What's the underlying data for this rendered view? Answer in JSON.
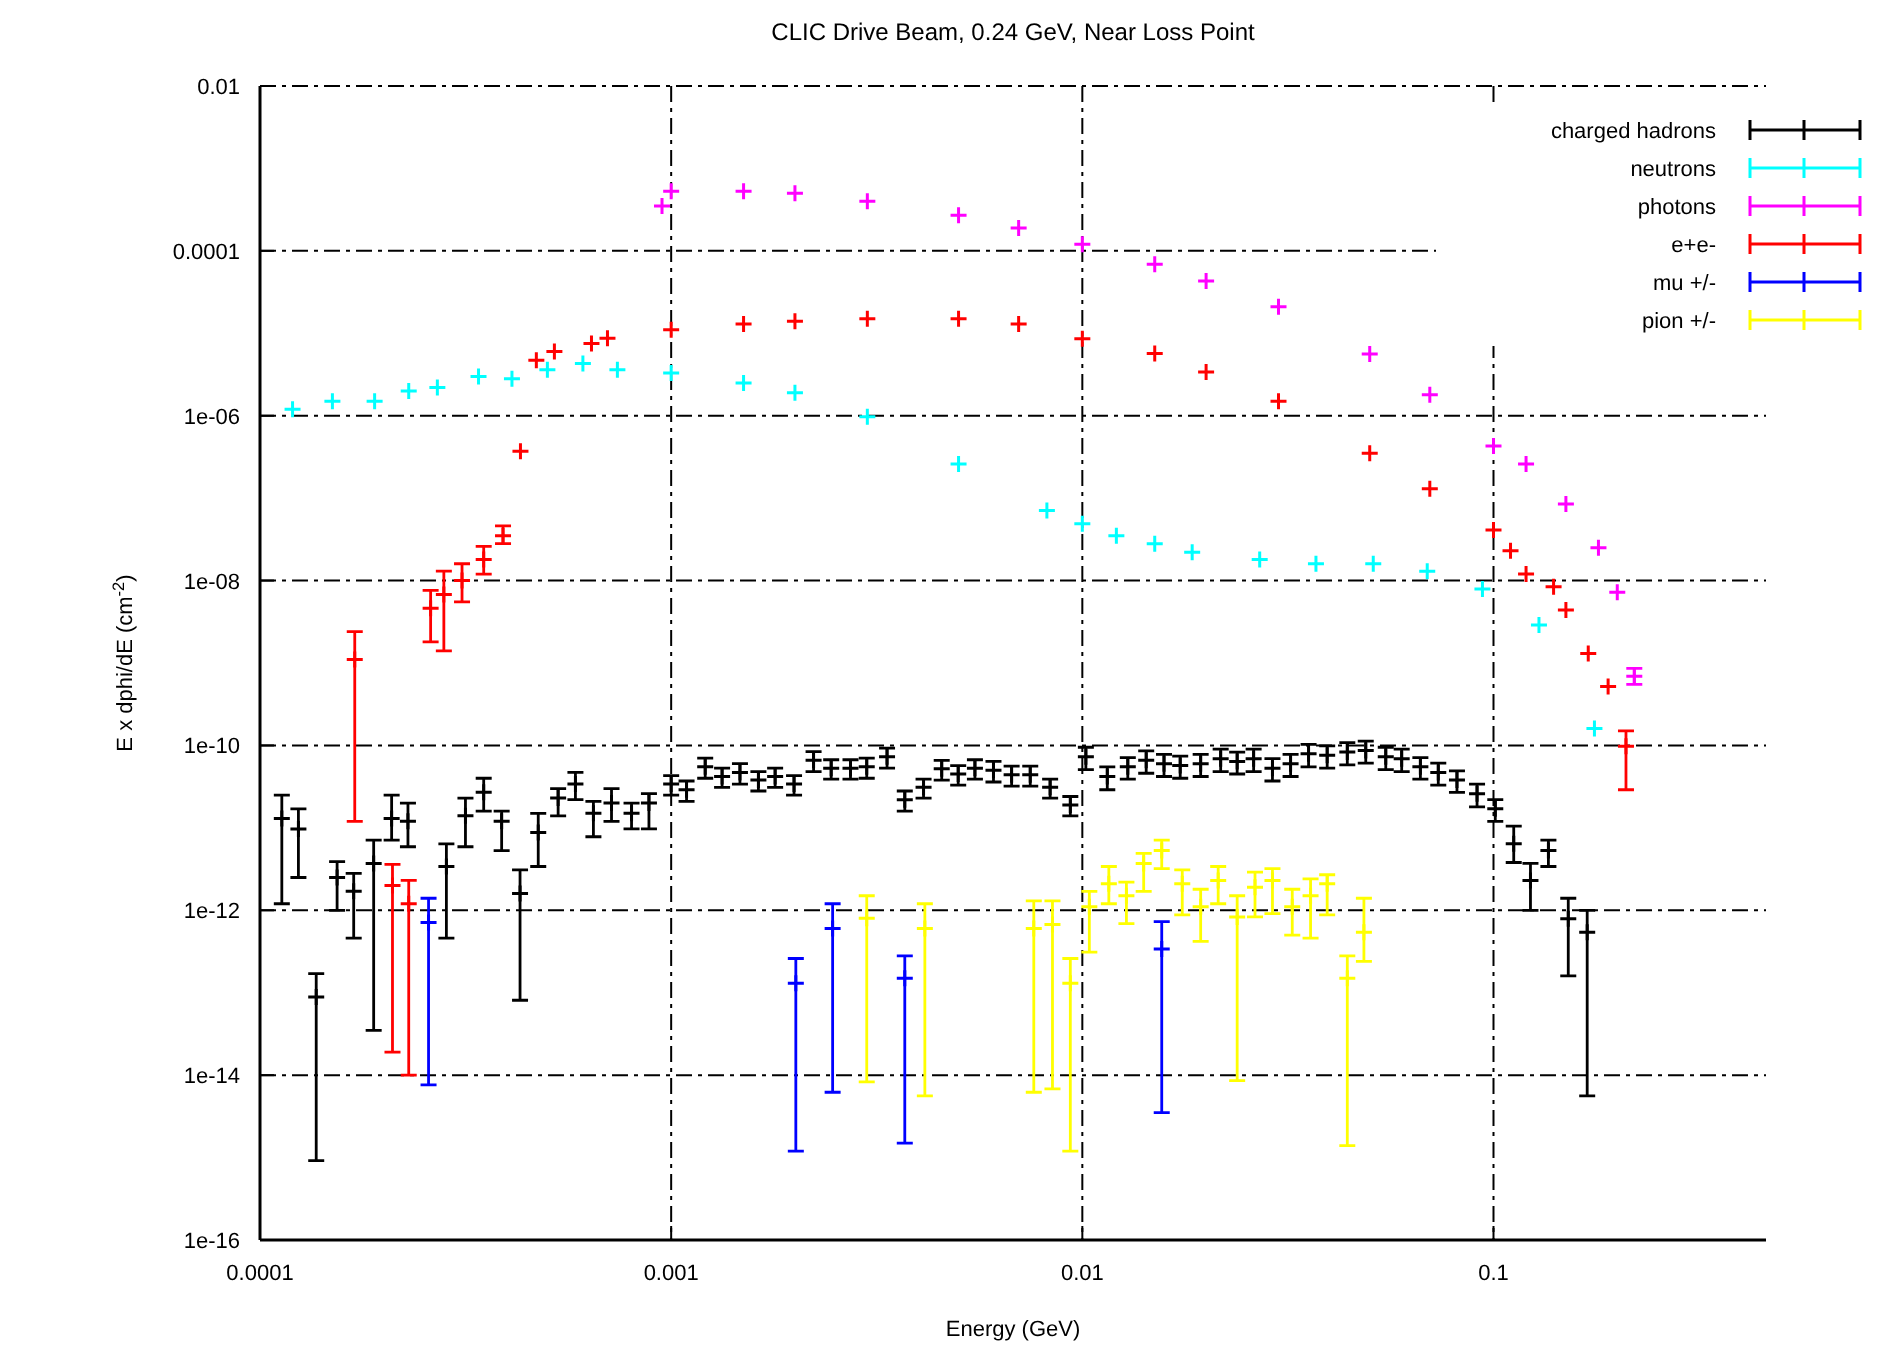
{
  "chart_data": {
    "type": "scatter",
    "title": "CLIC Drive Beam, 0.24 GeV, Near Loss Point",
    "xlabel": "Energy (GeV)",
    "ylabel": "E x dphi/dE (cm$^{-2}$)",
    "log": "xy",
    "grid": true,
    "legend": "top right",
    "marker": "cross",
    "xlim": [
      0.0001,
      0.46
    ],
    "xticks": [
      0.0001,
      0.001,
      0.01,
      0.1
    ],
    "ylim": [
      1e-16,
      0.01
    ],
    "yticks": [
      {
        "value": 1e-16,
        "label": "1e-16"
      },
      {
        "value": 1e-14,
        "label": "1e-14"
      },
      {
        "value": 1e-12,
        "label": "1e-12"
      },
      {
        "value": 1e-10,
        "label": "1e-10"
      },
      {
        "value": 1e-08,
        "label": "1e-08"
      },
      {
        "value": 1e-06,
        "label": "1e-06"
      },
      0.0001,
      0.01
    ],
    "series": [
      {
        "name": "charged hadrons",
        "color": "#000000",
        "x": [
          0.000113,
          0.000124,
          0.000137,
          0.000154,
          0.000169,
          0.000189,
          0.000209,
          0.000229,
          0.000284,
          0.000316,
          0.00035,
          0.000387,
          0.000429,
          0.000475,
          0.000531,
          0.000585,
          0.000647,
          0.000716,
          0.000801,
          0.000883,
          0.001,
          0.00109,
          0.00121,
          0.00133,
          0.00147,
          0.00163,
          0.00179,
          0.00199,
          0.00222,
          0.00245,
          0.00273,
          0.00299,
          0.00335,
          0.0037,
          0.00411,
          0.00455,
          0.00499,
          0.00548,
          0.00608,
          0.00673,
          0.00747,
          0.00835,
          0.00935,
          0.0102,
          0.0115,
          0.0129,
          0.0143,
          0.0158,
          0.0173,
          0.0194,
          0.0217,
          0.0238,
          0.0261,
          0.029,
          0.0321,
          0.0355,
          0.0394,
          0.0441,
          0.0489,
          0.0547,
          0.0598,
          0.0664,
          0.0734,
          0.0815,
          0.0912,
          0.101,
          0.112,
          0.123,
          0.136,
          0.152,
          0.169
        ],
        "values": [
          1.3e-11,
          9.7e-12,
          8.9e-14,
          2.5e-12,
          1.7e-12,
          3.7e-12,
          1.3e-11,
          1.2e-11,
          3.4e-12,
          1.4e-11,
          2.7e-11,
          1.2e-11,
          1.6e-12,
          8.8e-12,
          2.3e-11,
          3.4e-11,
          1.5e-11,
          2e-11,
          1.5e-11,
          2e-11,
          3.4e-11,
          2.9e-11,
          5.5e-11,
          4.2e-11,
          4.7e-11,
          3.8e-11,
          4.2e-11,
          3.4e-11,
          6.6e-11,
          5.3e-11,
          5.3e-11,
          5.5e-11,
          7.3e-11,
          2.2e-11,
          3.1e-11,
          5.2e-11,
          4.5e-11,
          5.3e-11,
          5e-11,
          4.4e-11,
          4.4e-11,
          3.1e-11,
          1.9e-11,
          7.3e-11,
          4.2e-11,
          5.5e-11,
          6.6e-11,
          6e-11,
          5.7e-11,
          6e-11,
          6.9e-11,
          6.4e-11,
          6.9e-11,
          5.3e-11,
          6e-11,
          7.9e-11,
          7.6e-11,
          8.3e-11,
          8.7e-11,
          7.3e-11,
          6.9e-11,
          5.5e-11,
          4.7e-11,
          3.8e-11,
          2.6e-11,
          1.7e-11,
          6.4e-12,
          2.3e-12,
          5.3e-12,
          7.9e-13,
          5.4e-13
        ],
        "errors": [
          [
            1.2e-12,
            2.5e-11
          ],
          [
            2.5e-12,
            1.7e-11
          ],
          [
            9.2e-16,
            1.7e-13
          ],
          [
            1e-12,
            3.9e-12
          ],
          [
            4.6e-13,
            2.8e-12
          ],
          [
            3.5e-14,
            7.1e-12
          ],
          [
            7.1e-12,
            2.5e-11
          ],
          [
            5.9e-12,
            2e-11
          ],
          [
            4.6e-13,
            6.4e-12
          ],
          [
            5.9e-12,
            2.3e-11
          ],
          [
            1.6e-11,
            4e-11
          ],
          [
            5.3e-12,
            1.6e-11
          ],
          [
            8.1e-14,
            3.1e-12
          ],
          [
            3.4e-12,
            1.5e-11
          ],
          [
            1.4e-11,
            3e-11
          ],
          [
            2.2e-11,
            4.7e-11
          ],
          [
            7.8e-12,
            2.1e-11
          ],
          [
            1.2e-11,
            3e-11
          ],
          [
            9.7e-12,
            2e-11
          ],
          [
            9.7e-12,
            2.6e-11
          ],
          9e-12,
          8e-12,
          1.5e-11,
          1.1e-11,
          1.3e-11,
          1e-11,
          1.1e-11,
          9e-12,
          1.8e-11,
          1.4e-11,
          1.4e-11,
          1.5e-11,
          2e-11,
          6e-12,
          8e-12,
          1.4e-11,
          1.2e-11,
          1.4e-11,
          1.4e-11,
          1.2e-11,
          1.2e-11,
          8e-12,
          5e-12,
          2.2e-11,
          1.3e-11,
          1.6e-11,
          2e-11,
          1.8e-11,
          1.7e-11,
          1.8e-11,
          2.1e-11,
          1.9e-11,
          2.1e-11,
          1.6e-11,
          1.8e-11,
          2.4e-11,
          2.3e-11,
          2.5e-11,
          2.6e-11,
          2.2e-11,
          2.1e-11,
          1.6e-11,
          1.4e-11,
          1.1e-11,
          8e-12,
          5e-12,
          [
            3.8e-12,
            1.05e-11
          ],
          [
            1e-12,
            3.7e-12
          ],
          [
            3.4e-12,
            7.1e-12
          ],
          [
            1.6e-13,
            1.4e-12
          ],
          [
            5.6e-15,
            1e-12
          ]
        ]
      },
      {
        "name": "neutrons",
        "color": "#00ffff",
        "x": [
          0.00012,
          0.00015,
          0.00019,
          0.00023,
          0.00027,
          0.00034,
          0.00041,
          0.0005,
          0.00061,
          0.00074,
          0.001,
          0.0015,
          0.002,
          0.003,
          0.005,
          0.0082,
          0.01,
          0.0121,
          0.015,
          0.0185,
          0.027,
          0.037,
          0.051,
          0.069,
          0.094,
          0.129,
          0.176
        ],
        "values": [
          1.2e-06,
          1.5e-06,
          1.5e-06,
          2e-06,
          2.2e-06,
          3e-06,
          2.8e-06,
          3.6e-06,
          4.3e-06,
          3.6e-06,
          3.3e-06,
          2.5e-06,
          1.9e-06,
          9.7e-07,
          2.6e-07,
          7.1e-08,
          4.9e-08,
          3.5e-08,
          2.8e-08,
          2.2e-08,
          1.8e-08,
          1.6e-08,
          1.6e-08,
          1.3e-08,
          7.9e-09,
          2.9e-09,
          1.6e-10
        ]
      },
      {
        "name": "photons",
        "color": "#ff00ff",
        "x": [
          0.00095,
          0.001,
          0.0015,
          0.002,
          0.003,
          0.005,
          0.007,
          0.01,
          0.015,
          0.02,
          0.03,
          0.05,
          0.07,
          0.1,
          0.12,
          0.15,
          0.18,
          0.2,
          0.22
        ],
        "values": [
          0.00035,
          0.00053,
          0.00053,
          0.0005,
          0.0004,
          0.00027,
          0.00019,
          0.00012,
          6.9e-05,
          4.3e-05,
          2.1e-05,
          5.6e-06,
          1.8e-06,
          4.3e-07,
          2.6e-07,
          8.5e-08,
          2.5e-08,
          7.2e-09,
          6.9e-10
        ],
        "errors": [
          null,
          null,
          null,
          null,
          null,
          null,
          null,
          null,
          null,
          null,
          null,
          null,
          null,
          null,
          null,
          null,
          null,
          null,
          [
            5.5e-10,
            8.6e-10
          ]
        ]
      },
      {
        "name": "e+e-",
        "color": "#ff0000",
        "x": [
          0.00017,
          0.00021,
          0.00023,
          0.00026,
          0.00028,
          0.00031,
          0.00035,
          0.00039,
          0.00043,
          0.00047,
          0.00052,
          0.00064,
          0.0007,
          0.001,
          0.0015,
          0.002,
          0.003,
          0.005,
          0.007,
          0.01,
          0.015,
          0.02,
          0.03,
          0.05,
          0.07,
          0.1,
          0.11,
          0.12,
          0.14,
          0.15,
          0.17,
          0.19,
          0.21
        ],
        "values": [
          1.1e-09,
          2e-12,
          1.2e-12,
          4.6e-09,
          6.8e-09,
          1e-08,
          1.8e-08,
          3.5e-08,
          3.7e-07,
          4.7e-06,
          6e-06,
          7.5e-06,
          8.7e-06,
          1.1e-05,
          1.3e-05,
          1.4e-05,
          1.5e-05,
          1.5e-05,
          1.3e-05,
          8.6e-06,
          5.7e-06,
          3.4e-06,
          1.5e-06,
          3.5e-07,
          1.3e-07,
          4.1e-08,
          2.3e-08,
          1.2e-08,
          8.4e-09,
          4.4e-09,
          1.3e-09,
          5.2e-10,
          9.8e-11
        ],
        "errors": [
          [
            1.2e-11,
            2.4e-09
          ],
          [
            1.9e-14,
            3.6e-12
          ],
          [
            1e-14,
            2.3e-12
          ],
          [
            1.8e-09,
            7.6e-09
          ],
          [
            1.4e-09,
            1.3e-08
          ],
          [
            5.5e-09,
            1.6e-08
          ],
          [
            1.2e-08,
            2.6e-08
          ],
          [
            2.8e-08,
            4.6e-08
          ],
          null,
          null,
          null,
          null,
          null,
          null,
          null,
          null,
          null,
          null,
          null,
          null,
          null,
          null,
          null,
          null,
          null,
          null,
          null,
          null,
          null,
          null,
          null,
          null,
          [
            2.9e-11,
            1.5e-10
          ]
        ]
      },
      {
        "name": "mu +/-",
        "color": "#0000ff",
        "x": [
          0.000257,
          0.00201,
          0.00247,
          0.0037,
          0.0156
        ],
        "values": [
          7.1e-13,
          1.3e-13,
          6e-13,
          1.5e-13,
          3.4e-13
        ],
        "errors": [
          [
            7.6e-15,
            1.4e-12
          ],
          [
            1.2e-15,
            2.6e-13
          ],
          [
            6.2e-15,
            1.2e-12
          ],
          [
            1.5e-15,
            2.8e-13
          ],
          [
            3.5e-15,
            7.3e-13
          ]
        ]
      },
      {
        "name": "pion +/-",
        "color": "#ffff00",
        "x": [
          0.00299,
          0.00414,
          0.00762,
          0.00846,
          0.00935,
          0.0104,
          0.0116,
          0.0128,
          0.0141,
          0.0156,
          0.0175,
          0.0194,
          0.0214,
          0.0238,
          0.0263,
          0.029,
          0.0324,
          0.0359,
          0.0394,
          0.0441,
          0.0484
        ],
        "values": [
          8e-13,
          6e-13,
          6e-13,
          6.7e-13,
          1.3e-13,
          1.1e-12,
          2.1e-12,
          1.5e-12,
          3.7e-12,
          5.3e-12,
          2.1e-12,
          1.1e-12,
          2.3e-12,
          8.3e-13,
          1.9e-12,
          2.3e-12,
          1.1e-12,
          1.5e-12,
          2.1e-12,
          1.5e-13,
          5.4e-13
        ],
        "errors": [
          [
            8.3e-15,
            1.5e-12
          ],
          [
            5.6e-15,
            1.2e-12
          ],
          [
            6.2e-15,
            1.3e-12
          ],
          [
            6.8e-15,
            1.3e-12
          ],
          [
            1.2e-15,
            2.6e-13
          ],
          [
            3.1e-13,
            1.7e-12
          ],
          [
            1.2e-12,
            3.4e-12
          ],
          [
            6.9e-13,
            2.2e-12
          ],
          [
            1.7e-12,
            4.9e-12
          ],
          [
            3.2e-12,
            7.1e-12
          ],
          [
            8.8e-13,
            3.1e-12
          ],
          [
            4.2e-13,
            1.8e-12
          ],
          [
            1.2e-12,
            3.4e-12
          ],
          [
            8.6e-15,
            1.5e-12
          ],
          [
            8.3e-13,
            2.9e-12
          ],
          [
            9.1e-13,
            3.2e-12
          ],
          [
            5e-13,
            1.8e-12
          ],
          [
            4.6e-13,
            2.4e-12
          ],
          [
            8.8e-13,
            2.7e-12
          ],
          [
            1.4e-15,
            2.8e-13
          ],
          [
            2.4e-13,
            1.4e-12
          ]
        ]
      }
    ]
  }
}
